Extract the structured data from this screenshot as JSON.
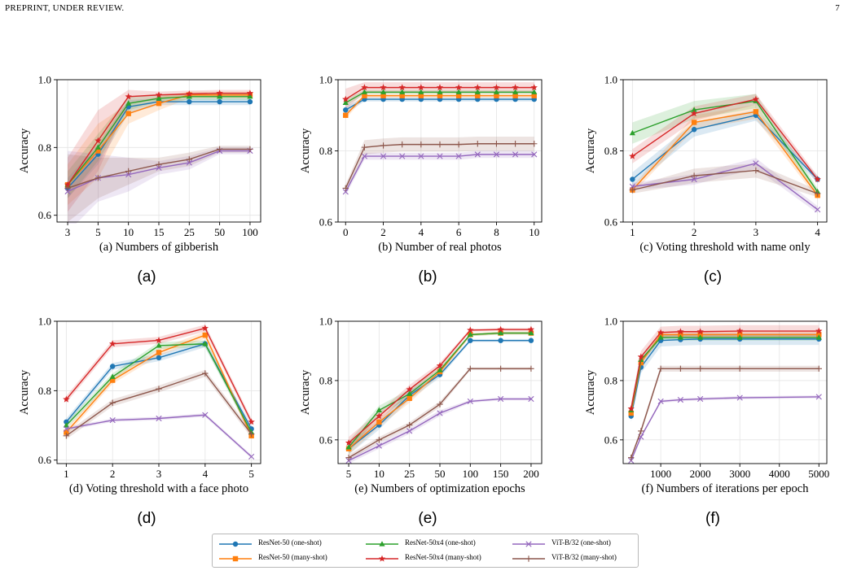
{
  "header": {
    "left": "PREPRINT, UNDER REVIEW.",
    "right": "7"
  },
  "colors": {
    "ResNet-50 (one-shot)": "#1f77b4",
    "ResNet-50 (many-shot)": "#ff7f0e",
    "ResNet-50x4 (one-shot)": "#2ca02c",
    "ResNet-50x4 (many-shot)": "#d62728",
    "ViT-B/32 (one-shot)": "#9467bd",
    "ViT-B/32 (many-shot)": "#8c564b"
  },
  "markers": {
    "ResNet-50 (one-shot)": "circle",
    "ResNet-50 (many-shot)": "square",
    "ResNet-50x4 (one-shot)": "triangle",
    "ResNet-50x4 (many-shot)": "star",
    "ViT-B/32 (one-shot)": "x",
    "ViT-B/32 (many-shot)": "plus"
  },
  "legend": {
    "items": [
      "ResNet-50 (one-shot)",
      "ResNet-50 (many-shot)",
      "ResNet-50x4 (one-shot)",
      "ResNet-50x4 (many-shot)",
      "ViT-B/32 (one-shot)",
      "ViT-B/32 (many-shot)"
    ]
  },
  "chart_data": [
    {
      "type": "line",
      "panel_label": "(a)",
      "xlabel": "(a) Numbers of gibberish",
      "ylabel": "Accuracy",
      "x_scale": "categorical",
      "categories": [
        "3",
        "5",
        "10",
        "15",
        "25",
        "50",
        "100"
      ],
      "ylim": [
        0.58,
        1.0
      ],
      "yticks": [
        "0.6",
        "0.8",
        "1.0"
      ],
      "grid": true,
      "series": [
        {
          "name": "ResNet-50 (one-shot)",
          "values": [
            0.68,
            0.78,
            0.92,
            0.935,
            0.935,
            0.935,
            0.935
          ],
          "band": [
            0.03,
            0.03,
            0.02,
            0.01,
            0.01,
            0.01,
            0.01
          ]
        },
        {
          "name": "ResNet-50 (many-shot)",
          "values": [
            0.69,
            0.79,
            0.9,
            0.93,
            0.955,
            0.955,
            0.955
          ],
          "band": [
            0.06,
            0.08,
            0.03,
            0.02,
            0.01,
            0.01,
            0.01
          ]
        },
        {
          "name": "ResNet-50x4 (one-shot)",
          "values": [
            0.69,
            0.8,
            0.93,
            0.945,
            0.95,
            0.95,
            0.95
          ],
          "band": [
            0.04,
            0.04,
            0.02,
            0.01,
            0.01,
            0.01,
            0.01
          ]
        },
        {
          "name": "ResNet-50x4 (many-shot)",
          "values": [
            0.69,
            0.82,
            0.95,
            0.955,
            0.958,
            0.96,
            0.96
          ],
          "band": [
            0.08,
            0.09,
            0.02,
            0.01,
            0.01,
            0.01,
            0.01
          ]
        },
        {
          "name": "ViT-B/32 (one-shot)",
          "values": [
            0.67,
            0.71,
            0.72,
            0.74,
            0.755,
            0.79,
            0.79
          ],
          "band": [
            0.12,
            0.07,
            0.05,
            0.02,
            0.02,
            0.01,
            0.01
          ]
        },
        {
          "name": "ViT-B/32 (many-shot)",
          "values": [
            0.68,
            0.71,
            0.73,
            0.75,
            0.765,
            0.795,
            0.795
          ],
          "band": [
            0.1,
            0.06,
            0.04,
            0.02,
            0.02,
            0.01,
            0.01
          ]
        }
      ]
    },
    {
      "type": "line",
      "panel_label": "(b)",
      "xlabel": "(b) Number of real photos",
      "ylabel": "Accuracy",
      "x_scale": "linear",
      "x": [
        0,
        1,
        2,
        3,
        4,
        5,
        6,
        7,
        8,
        9,
        10
      ],
      "xlim": [
        -0.4,
        10.4
      ],
      "xticks": [
        0,
        2,
        4,
        6,
        8,
        10
      ],
      "ylim": [
        0.6,
        1.0
      ],
      "yticks": [
        "0.6",
        "0.8",
        "1.0"
      ],
      "grid": true,
      "series": [
        {
          "name": "ResNet-50 (one-shot)",
          "values": [
            0.915,
            0.945,
            0.945,
            0.945,
            0.945,
            0.945,
            0.945,
            0.945,
            0.945,
            0.945,
            0.945
          ],
          "band": [
            0.01,
            0.006,
            0.006,
            0.006,
            0.006,
            0.006,
            0.006,
            0.006,
            0.006,
            0.006,
            0.006
          ]
        },
        {
          "name": "ResNet-50 (many-shot)",
          "values": [
            0.9,
            0.955,
            0.955,
            0.955,
            0.955,
            0.955,
            0.955,
            0.955,
            0.955,
            0.955,
            0.955
          ],
          "band": [
            0.01,
            0.006,
            0.006,
            0.006,
            0.006,
            0.006,
            0.006,
            0.006,
            0.006,
            0.006,
            0.006
          ]
        },
        {
          "name": "ResNet-50x4 (one-shot)",
          "values": [
            0.935,
            0.965,
            0.965,
            0.965,
            0.965,
            0.965,
            0.965,
            0.965,
            0.965,
            0.965,
            0.965
          ],
          "band": [
            0.01,
            0.006,
            0.006,
            0.006,
            0.006,
            0.006,
            0.006,
            0.006,
            0.006,
            0.006,
            0.006
          ]
        },
        {
          "name": "ResNet-50x4 (many-shot)",
          "values": [
            0.945,
            0.978,
            0.978,
            0.978,
            0.978,
            0.978,
            0.978,
            0.978,
            0.978,
            0.978,
            0.978
          ],
          "band": [
            0.03,
            0.015,
            0.015,
            0.015,
            0.015,
            0.015,
            0.015,
            0.015,
            0.015,
            0.015,
            0.015
          ]
        },
        {
          "name": "ViT-B/32 (one-shot)",
          "values": [
            0.685,
            0.785,
            0.785,
            0.785,
            0.785,
            0.785,
            0.785,
            0.79,
            0.79,
            0.79,
            0.79
          ],
          "band": [
            0.01,
            0.01,
            0.01,
            0.01,
            0.01,
            0.01,
            0.01,
            0.01,
            0.01,
            0.01,
            0.01
          ]
        },
        {
          "name": "ViT-B/32 (many-shot)",
          "values": [
            0.695,
            0.81,
            0.815,
            0.818,
            0.818,
            0.818,
            0.818,
            0.82,
            0.82,
            0.82,
            0.82
          ],
          "band": [
            0.01,
            0.02,
            0.02,
            0.02,
            0.02,
            0.02,
            0.02,
            0.02,
            0.02,
            0.02,
            0.02
          ]
        }
      ]
    },
    {
      "type": "line",
      "panel_label": "(c)",
      "xlabel": "(c) Voting threshold with name only",
      "ylabel": "Accuracy",
      "x_scale": "linear",
      "x": [
        1,
        2,
        3,
        4
      ],
      "xlim": [
        0.85,
        4.15
      ],
      "xticks": [
        1,
        2,
        3,
        4
      ],
      "ylim": [
        0.6,
        1.0
      ],
      "yticks": [
        "0.6",
        "0.8",
        "1.0"
      ],
      "grid": true,
      "series": [
        {
          "name": "ResNet-50 (one-shot)",
          "values": [
            0.72,
            0.86,
            0.9,
            0.72
          ],
          "band": [
            0.02,
            0.02,
            0.015,
            0.01
          ]
        },
        {
          "name": "ResNet-50 (many-shot)",
          "values": [
            0.69,
            0.88,
            0.91,
            0.675
          ],
          "band": [
            0.01,
            0.02,
            0.02,
            0.01
          ]
        },
        {
          "name": "ResNet-50x4 (one-shot)",
          "values": [
            0.85,
            0.915,
            0.94,
            0.685
          ],
          "band": [
            0.03,
            0.025,
            0.02,
            0.01
          ]
        },
        {
          "name": "ResNet-50x4 (many-shot)",
          "values": [
            0.785,
            0.905,
            0.945,
            0.72
          ],
          "band": [
            0.02,
            0.02,
            0.015,
            0.01
          ]
        },
        {
          "name": "ViT-B/32 (one-shot)",
          "values": [
            0.7,
            0.72,
            0.765,
            0.635
          ],
          "band": [
            0.01,
            0.015,
            0.015,
            0.01
          ]
        },
        {
          "name": "ViT-B/32 (many-shot)",
          "values": [
            0.69,
            0.73,
            0.745,
            0.68
          ],
          "band": [
            0.01,
            0.02,
            0.02,
            0.01
          ]
        }
      ]
    },
    {
      "type": "line",
      "panel_label": "(d)",
      "xlabel": "(d) Voting threshold with a face photo",
      "ylabel": "Accuracy",
      "x_scale": "linear",
      "x": [
        1,
        2,
        3,
        4,
        5
      ],
      "xlim": [
        0.8,
        5.2
      ],
      "xticks": [
        1,
        2,
        3,
        4,
        5
      ],
      "ylim": [
        0.59,
        1.0
      ],
      "yticks": [
        "0.6",
        "0.8",
        "1.0"
      ],
      "grid": true,
      "series": [
        {
          "name": "ResNet-50 (one-shot)",
          "values": [
            0.71,
            0.87,
            0.895,
            0.935,
            0.69
          ],
          "band": [
            0.01,
            0.01,
            0.01,
            0.01,
            0.01
          ]
        },
        {
          "name": "ResNet-50 (many-shot)",
          "values": [
            0.68,
            0.83,
            0.91,
            0.96,
            0.67
          ],
          "band": [
            0.01,
            0.01,
            0.01,
            0.01,
            0.01
          ]
        },
        {
          "name": "ResNet-50x4 (one-shot)",
          "values": [
            0.7,
            0.84,
            0.93,
            0.935,
            0.68
          ],
          "band": [
            0.01,
            0.01,
            0.01,
            0.01,
            0.01
          ]
        },
        {
          "name": "ResNet-50x4 (many-shot)",
          "values": [
            0.775,
            0.935,
            0.945,
            0.98,
            0.71
          ],
          "band": [
            0.01,
            0.01,
            0.01,
            0.01,
            0.01
          ]
        },
        {
          "name": "ViT-B/32 (one-shot)",
          "values": [
            0.69,
            0.715,
            0.72,
            0.73,
            0.61
          ],
          "band": [
            0.005,
            0.005,
            0.005,
            0.005,
            0.005
          ]
        },
        {
          "name": "ViT-B/32 (many-shot)",
          "values": [
            0.67,
            0.765,
            0.805,
            0.85,
            0.675
          ],
          "band": [
            0.01,
            0.01,
            0.01,
            0.01,
            0.01
          ]
        }
      ]
    },
    {
      "type": "line",
      "panel_label": "(e)",
      "xlabel": "(e) Numbers of optimization epochs",
      "ylabel": "Accuracy",
      "x_scale": "categorical",
      "categories": [
        "5",
        "10",
        "25",
        "50",
        "100",
        "150",
        "200"
      ],
      "ylim": [
        0.52,
        1.0
      ],
      "yticks": [
        "0.6",
        "0.8",
        "1.0"
      ],
      "grid": true,
      "series": [
        {
          "name": "ResNet-50 (one-shot)",
          "values": [
            0.57,
            0.65,
            0.75,
            0.82,
            0.935,
            0.935,
            0.935
          ],
          "band": [
            0.02,
            0.015,
            0.015,
            0.01,
            0.005,
            0.005,
            0.005
          ]
        },
        {
          "name": "ResNet-50 (many-shot)",
          "values": [
            0.57,
            0.66,
            0.74,
            0.83,
            0.955,
            0.96,
            0.96
          ],
          "band": [
            0.02,
            0.015,
            0.015,
            0.01,
            0.005,
            0.005,
            0.005
          ]
        },
        {
          "name": "ResNet-50x4 (one-shot)",
          "values": [
            0.575,
            0.7,
            0.755,
            0.835,
            0.955,
            0.96,
            0.96
          ],
          "band": [
            0.02,
            0.015,
            0.015,
            0.01,
            0.005,
            0.005,
            0.005
          ]
        },
        {
          "name": "ResNet-50x4 (many-shot)",
          "values": [
            0.59,
            0.68,
            0.77,
            0.85,
            0.97,
            0.972,
            0.972
          ],
          "band": [
            0.02,
            0.015,
            0.015,
            0.01,
            0.005,
            0.005,
            0.005
          ]
        },
        {
          "name": "ViT-B/32 (one-shot)",
          "values": [
            0.53,
            0.58,
            0.63,
            0.69,
            0.73,
            0.738,
            0.738
          ],
          "band": [
            0.01,
            0.01,
            0.01,
            0.01,
            0.005,
            0.005,
            0.005
          ]
        },
        {
          "name": "ViT-B/32 (many-shot)",
          "values": [
            0.54,
            0.6,
            0.65,
            0.72,
            0.84,
            0.84,
            0.84
          ],
          "band": [
            0.01,
            0.01,
            0.01,
            0.01,
            0.005,
            0.005,
            0.005
          ]
        }
      ]
    },
    {
      "type": "line",
      "panel_label": "(f)",
      "xlabel": "(f) Numbers of iterations per epoch",
      "ylabel": "Accuracy",
      "x_scale": "linear",
      "x": [
        250,
        500,
        1000,
        1500,
        2000,
        3000,
        5000
      ],
      "xlim": [
        50,
        5200
      ],
      "xticks": [
        1000,
        2000,
        3000,
        4000,
        5000
      ],
      "ylim": [
        0.52,
        1.0
      ],
      "yticks": [
        "0.6",
        "0.8",
        "1.0"
      ],
      "grid": true,
      "series": [
        {
          "name": "ResNet-50 (one-shot)",
          "values": [
            0.68,
            0.845,
            0.935,
            0.938,
            0.94,
            0.94,
            0.94
          ],
          "band": [
            0.02,
            0.02,
            0.02,
            0.02,
            0.02,
            0.02,
            0.02
          ]
        },
        {
          "name": "ResNet-50 (many-shot)",
          "values": [
            0.69,
            0.86,
            0.955,
            0.955,
            0.955,
            0.955,
            0.955
          ],
          "band": [
            0.01,
            0.01,
            0.01,
            0.01,
            0.01,
            0.01,
            0.01
          ]
        },
        {
          "name": "ResNet-50x4 (one-shot)",
          "values": [
            0.7,
            0.87,
            0.945,
            0.945,
            0.945,
            0.945,
            0.945
          ],
          "band": [
            0.01,
            0.01,
            0.01,
            0.01,
            0.01,
            0.01,
            0.01
          ]
        },
        {
          "name": "ResNet-50x4 (many-shot)",
          "values": [
            0.705,
            0.88,
            0.962,
            0.965,
            0.965,
            0.967,
            0.967
          ],
          "band": [
            0.02,
            0.02,
            0.02,
            0.02,
            0.02,
            0.02,
            0.02
          ]
        },
        {
          "name": "ViT-B/32 (one-shot)",
          "values": [
            0.53,
            0.61,
            0.73,
            0.735,
            0.738,
            0.742,
            0.745
          ],
          "band": [
            0.005,
            0.005,
            0.005,
            0.005,
            0.005,
            0.005,
            0.005
          ]
        },
        {
          "name": "ViT-B/32 (many-shot)",
          "values": [
            0.54,
            0.63,
            0.84,
            0.84,
            0.84,
            0.84,
            0.84
          ],
          "band": [
            0.005,
            0.01,
            0.01,
            0.01,
            0.01,
            0.01,
            0.01
          ]
        }
      ]
    }
  ]
}
